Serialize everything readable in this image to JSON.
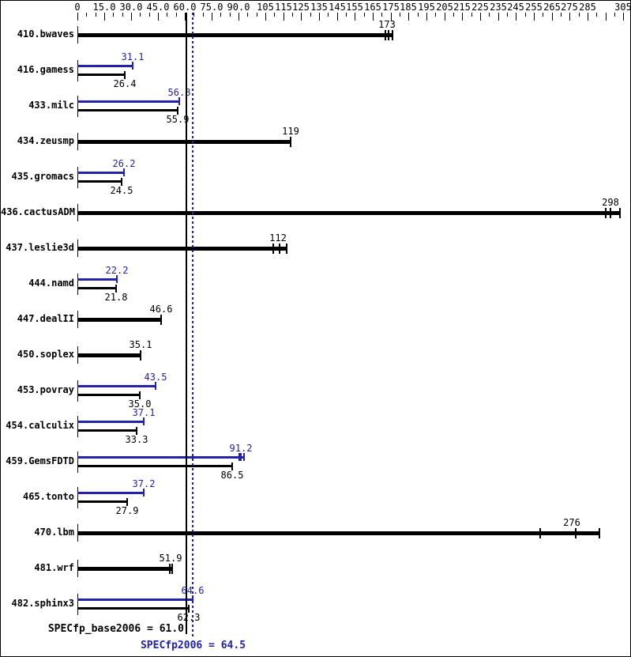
{
  "chart_data": {
    "type": "bar",
    "orientation": "horizontal",
    "title": "",
    "xlabel": "",
    "ylabel": "",
    "xlim": [
      0,
      308
    ],
    "grid": false,
    "legend": "none",
    "colors": {
      "base": "#000000",
      "peak": "#2222aa"
    },
    "axis_labels": [
      {
        "v": 0,
        "t": "0"
      },
      {
        "v": 15,
        "t": "15.0"
      },
      {
        "v": 30,
        "t": "30.0"
      },
      {
        "v": 45,
        "t": "45.0"
      },
      {
        "v": 60,
        "t": "60.0"
      },
      {
        "v": 75,
        "t": "75.0"
      },
      {
        "v": 90,
        "t": "90.0"
      },
      {
        "v": 105,
        "t": "105"
      },
      {
        "v": 115,
        "t": "115"
      },
      {
        "v": 125,
        "t": "125"
      },
      {
        "v": 135,
        "t": "135"
      },
      {
        "v": 145,
        "t": "145"
      },
      {
        "v": 155,
        "t": "155"
      },
      {
        "v": 165,
        "t": "165"
      },
      {
        "v": 175,
        "t": "175"
      },
      {
        "v": 185,
        "t": "185"
      },
      {
        "v": 195,
        "t": "195"
      },
      {
        "v": 205,
        "t": "205"
      },
      {
        "v": 215,
        "t": "215"
      },
      {
        "v": 225,
        "t": "225"
      },
      {
        "v": 235,
        "t": "235"
      },
      {
        "v": 245,
        "t": "245"
      },
      {
        "v": 255,
        "t": "255"
      },
      {
        "v": 265,
        "t": "265"
      },
      {
        "v": 275,
        "t": "275"
      },
      {
        "v": 285,
        "t": "285"
      },
      {
        "v": 305,
        "t": "305"
      }
    ],
    "unlabeled_major_ticks": [
      295
    ],
    "minor_tick_step": 5,
    "benchmarks": [
      {
        "name": "410.bwaves",
        "single": {
          "value": 173,
          "label": "173",
          "runs": [
            172,
            174,
            176
          ]
        }
      },
      {
        "name": "416.gamess",
        "peak": {
          "value": 31.1,
          "label": "31.1"
        },
        "base": {
          "value": 26.4,
          "label": "26.4"
        }
      },
      {
        "name": "433.milc",
        "peak": {
          "value": 56.8,
          "label": "56.8"
        },
        "base": {
          "value": 55.9,
          "label": "55.9"
        }
      },
      {
        "name": "434.zeusmp",
        "single": {
          "value": 119,
          "label": "119"
        }
      },
      {
        "name": "435.gromacs",
        "peak": {
          "value": 26.2,
          "label": "26.2"
        },
        "base": {
          "value": 24.5,
          "label": "24.5"
        }
      },
      {
        "name": "436.cactusADM",
        "single": {
          "value": 298,
          "label": "298",
          "runs": [
            295,
            298,
            303
          ]
        }
      },
      {
        "name": "437.leslie3d",
        "single": {
          "value": 112,
          "label": "112",
          "runs": [
            109.5,
            113,
            117
          ]
        }
      },
      {
        "name": "444.namd",
        "peak": {
          "value": 22.2,
          "label": "22.2"
        },
        "base": {
          "value": 21.8,
          "label": "21.8"
        }
      },
      {
        "name": "447.dealII",
        "single": {
          "value": 46.6,
          "label": "46.6"
        }
      },
      {
        "name": "450.soplex",
        "single": {
          "value": 35.1,
          "label": "35.1"
        }
      },
      {
        "name": "453.povray",
        "peak": {
          "value": 43.5,
          "label": "43.5"
        },
        "base": {
          "value": 35.0,
          "label": "35.0"
        }
      },
      {
        "name": "454.calculix",
        "peak": {
          "value": 37.1,
          "label": "37.1"
        },
        "base": {
          "value": 33.3,
          "label": "33.3"
        }
      },
      {
        "name": "459.GemsFDTD",
        "peak": {
          "value": 91.2,
          "label": "91.2",
          "runs": [
            90.4,
            91.2,
            93
          ]
        },
        "base": {
          "value": 86.5,
          "label": "86.5"
        }
      },
      {
        "name": "465.tonto",
        "peak": {
          "value": 37.2,
          "label": "37.2"
        },
        "base": {
          "value": 27.9,
          "label": "27.9"
        }
      },
      {
        "name": "470.lbm",
        "single": {
          "value": 276,
          "label": "276",
          "runs": [
            258.5,
            278.5,
            291.5
          ]
        }
      },
      {
        "name": "481.wrf",
        "single": {
          "value": 51.9,
          "label": "51.9",
          "runs": [
            51.5,
            53
          ]
        }
      },
      {
        "name": "482.sphinx3",
        "peak": {
          "value": 64.6,
          "label": "64.6"
        },
        "base": {
          "value": 62.3,
          "label": "62.3"
        }
      }
    ],
    "summary": {
      "base": {
        "label": "SPECfp_base2006 = 61.0",
        "value": 61.0
      },
      "peak": {
        "label": "SPECfp2006 = 64.5",
        "value": 64.5
      }
    }
  }
}
